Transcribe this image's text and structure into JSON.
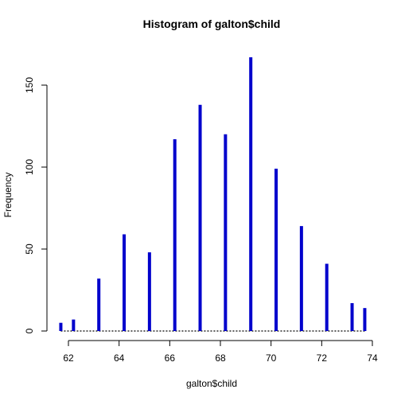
{
  "chart_data": {
    "type": "bar",
    "title": "Histogram of galton$child",
    "xlabel": "galton$child",
    "ylabel": "Frequency",
    "xlim": [
      61.7,
      73.7
    ],
    "ylim": [
      0,
      167
    ],
    "x_ticks": [
      62,
      64,
      66,
      68,
      70,
      72,
      74
    ],
    "y_ticks": [
      0,
      50,
      100,
      150
    ],
    "bar_color": "#0000cc",
    "bins": [
      {
        "x": 61.7,
        "y": 5
      },
      {
        "x": 62.2,
        "y": 7
      },
      {
        "x": 63.2,
        "y": 32
      },
      {
        "x": 64.2,
        "y": 59
      },
      {
        "x": 65.2,
        "y": 48
      },
      {
        "x": 66.2,
        "y": 117
      },
      {
        "x": 67.2,
        "y": 138
      },
      {
        "x": 68.2,
        "y": 120
      },
      {
        "x": 69.2,
        "y": 167
      },
      {
        "x": 70.2,
        "y": 99
      },
      {
        "x": 71.2,
        "y": 64
      },
      {
        "x": 72.2,
        "y": 41
      },
      {
        "x": 73.2,
        "y": 17
      },
      {
        "x": 73.7,
        "y": 14
      }
    ]
  }
}
